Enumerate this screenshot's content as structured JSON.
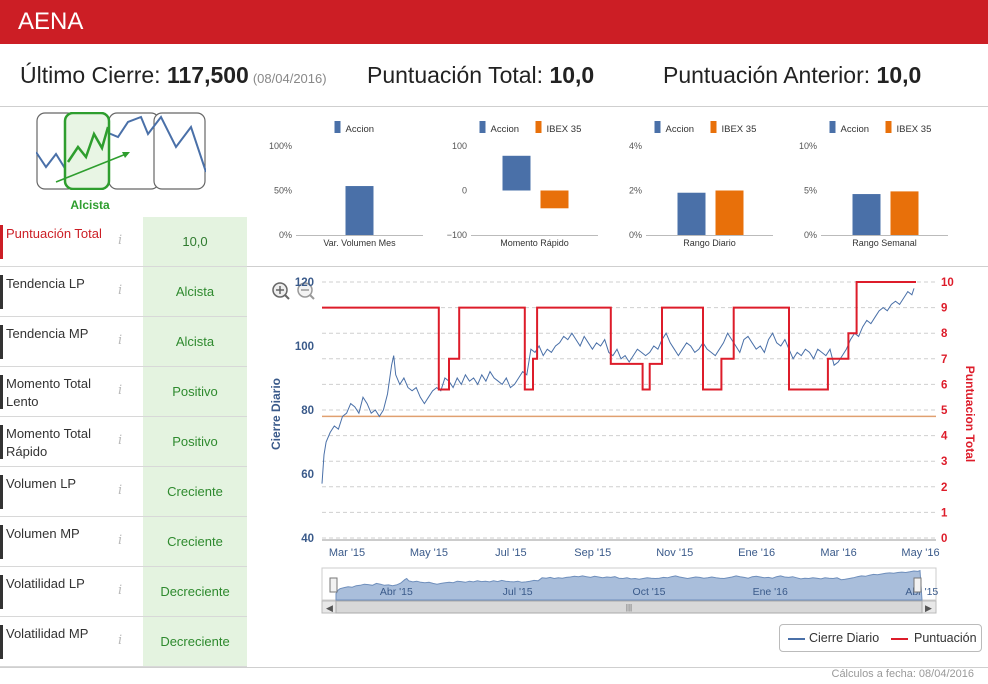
{
  "app": {
    "title": "AENA"
  },
  "summary": {
    "last_close_label": "Último Cierre:",
    "last_close_value": "117,500",
    "last_close_date": "(08/04/2016)",
    "total_label": "Puntuación Total:",
    "total_value": "10,0",
    "prev_label": "Puntuación Anterior:",
    "prev_value": "10,0"
  },
  "trend": {
    "label": "Alcista"
  },
  "indicators": [
    {
      "name": "Puntuación Total",
      "value": "10,0"
    },
    {
      "name": "Tendencia LP",
      "value": "Alcista"
    },
    {
      "name": "Tendencia MP",
      "value": "Alcista"
    },
    {
      "name": "Momento Total Lento",
      "value": "Positivo"
    },
    {
      "name": "Momento Total Rápido",
      "value": "Positivo"
    },
    {
      "name": "Volumen LP",
      "value": "Creciente"
    },
    {
      "name": "Volumen MP",
      "value": "Creciente"
    },
    {
      "name": "Volatilidad LP",
      "value": "Decreciente"
    },
    {
      "name": "Volatilidad MP",
      "value": "Decreciente"
    }
  ],
  "info_icon": "i",
  "colors": {
    "accion": "#4a70a8",
    "ibex": "#e8700a",
    "score": "#dd1c2a",
    "brand": "#cc1e25",
    "ref": "#e0a070"
  },
  "chart_data": [
    {
      "type": "bar",
      "title": "Var. Volumen Mes",
      "legend": [
        "Accion"
      ],
      "yticks": [
        "100%",
        "50%",
        "0%"
      ],
      "ylim": [
        0,
        100
      ],
      "series": [
        {
          "name": "Accion",
          "values": [
            55
          ]
        }
      ]
    },
    {
      "type": "bar",
      "title": "Momento Rápido",
      "legend": [
        "Accion",
        "IBEX 35"
      ],
      "yticks": [
        "100",
        "0",
        "−100"
      ],
      "ylim": [
        -100,
        100
      ],
      "series": [
        {
          "name": "Accion",
          "values": [
            78
          ]
        },
        {
          "name": "IBEX 35",
          "values": [
            -40
          ]
        }
      ]
    },
    {
      "type": "bar",
      "title": "Rango Diario",
      "legend": [
        "Accion",
        "IBEX 35"
      ],
      "yticks": [
        "4%",
        "2%",
        "0%"
      ],
      "ylim": [
        0,
        4
      ],
      "series": [
        {
          "name": "Accion",
          "values": [
            1.9
          ]
        },
        {
          "name": "IBEX 35",
          "values": [
            2.0
          ]
        }
      ]
    },
    {
      "type": "bar",
      "title": "Rango Semanal",
      "legend": [
        "Accion",
        "IBEX 35"
      ],
      "yticks": [
        "10%",
        "5%",
        "0%"
      ],
      "ylim": [
        0,
        10
      ],
      "series": [
        {
          "name": "Accion",
          "values": [
            4.6
          ]
        },
        {
          "name": "IBEX 35",
          "values": [
            4.9
          ]
        }
      ]
    },
    {
      "type": "line",
      "ylabel": "Cierre Diario",
      "y2label": "Puntuacion Total",
      "ylim": [
        40,
        120
      ],
      "y2lim": [
        0,
        10
      ],
      "yticks": [
        "120",
        "100",
        "80",
        "60",
        "40"
      ],
      "y2ticks": [
        "10",
        "9",
        "8",
        "7",
        "6",
        "5",
        "4",
        "3",
        "2",
        "1",
        "0"
      ],
      "xticks": [
        "Mar '15",
        "May '15",
        "Jul '15",
        "Sep '15",
        "Nov '15",
        "Ene '16",
        "Mar '16",
        "May '16"
      ],
      "navigator_ticks": [
        "Abr '15",
        "Jul '15",
        "Oct '15",
        "Ene '16",
        "Abr '15"
      ],
      "reference_line": 78,
      "x": [
        0,
        1,
        2,
        4,
        6,
        8,
        10,
        12,
        14,
        16,
        18,
        20,
        22,
        24,
        26,
        28,
        30,
        32,
        34,
        36,
        38,
        40,
        42,
        44,
        46,
        48,
        50,
        52,
        54,
        56,
        58,
        60,
        62,
        64,
        66,
        68,
        70,
        72,
        74,
        76,
        78,
        80,
        82,
        84,
        86,
        88,
        90,
        92,
        94,
        96,
        98,
        100,
        102,
        104,
        106,
        108,
        110,
        112,
        114,
        116,
        118,
        120,
        122,
        124,
        126,
        128,
        130,
        132,
        134,
        136,
        138,
        140,
        142,
        144,
        146,
        148,
        150,
        152,
        154,
        156,
        158,
        160,
        162,
        164,
        166,
        168,
        170,
        172,
        174,
        176,
        178,
        180,
        182,
        184,
        186,
        188,
        190,
        192,
        194,
        196,
        198,
        200,
        202,
        204,
        206,
        208,
        210,
        212,
        214,
        216,
        218,
        220,
        222,
        224,
        226,
        228,
        230,
        232,
        234,
        236,
        238,
        240,
        242,
        244,
        246,
        248,
        250,
        252,
        254,
        256,
        258,
        260,
        262,
        264,
        266,
        268,
        270,
        272,
        274,
        276,
        278,
        280,
        282,
        284,
        286,
        288,
        290,
        292,
        294,
        296,
        298,
        300,
        302,
        304,
        306,
        308,
        310,
        312,
        314,
        316,
        318,
        320,
        322,
        324,
        326,
        328,
        330,
        332,
        334,
        336,
        338,
        340,
        342,
        344,
        346,
        348,
        350,
        352,
        354,
        356,
        358,
        360,
        362,
        364,
        366,
        368,
        370,
        372,
        374,
        376,
        378,
        380,
        382,
        384,
        386,
        388,
        390,
        392,
        394,
        396,
        398,
        400,
        402,
        404,
        406,
        408,
        410,
        412,
        414,
        416,
        418,
        420,
        422,
        424,
        426,
        428,
        430,
        432,
        434,
        436,
        438,
        440,
        442,
        444,
        446,
        448,
        450,
        452,
        454,
        456,
        458,
        460,
        462,
        464,
        466,
        468,
        470,
        472,
        474,
        476,
        478,
        480,
        482,
        484,
        486,
        488,
        490,
        492,
        494,
        496,
        498,
        500,
        502,
        504,
        506,
        508,
        510,
        512,
        514,
        516,
        518,
        520,
        522,
        524,
        526,
        528,
        530,
        532,
        534,
        536,
        538,
        540,
        542,
        544,
        546,
        548,
        550,
        552,
        554,
        556,
        558,
        560,
        562,
        564,
        566,
        568,
        570,
        572,
        574,
        576,
        578,
        580
      ],
      "series": [
        {
          "name": "Cierre Diario",
          "points": [
            [
              0,
              57
            ],
            [
              2,
              66
            ],
            [
              4,
              70
            ],
            [
              8,
              73
            ],
            [
              12,
              75
            ],
            [
              16,
              74
            ],
            [
              20,
              78
            ],
            [
              24,
              79
            ],
            [
              28,
              82
            ],
            [
              32,
              81
            ],
            [
              36,
              79
            ],
            [
              40,
              84
            ],
            [
              44,
              82
            ],
            [
              48,
              79
            ],
            [
              52,
              80
            ],
            [
              56,
              78
            ],
            [
              60,
              80
            ],
            [
              64,
              85
            ],
            [
              68,
              94
            ],
            [
              70,
              97
            ],
            [
              72,
              91
            ],
            [
              76,
              88
            ],
            [
              80,
              90
            ],
            [
              84,
              87
            ],
            [
              88,
              86
            ],
            [
              92,
              87
            ],
            [
              96,
              84
            ],
            [
              100,
              82
            ],
            [
              104,
              84
            ],
            [
              108,
              86
            ],
            [
              112,
              87
            ],
            [
              116,
              86
            ],
            [
              120,
              90
            ],
            [
              124,
              89
            ],
            [
              128,
              87
            ],
            [
              132,
              90
            ],
            [
              136,
              88
            ],
            [
              140,
              91
            ],
            [
              144,
              89
            ],
            [
              148,
              90
            ],
            [
              152,
              88
            ],
            [
              156,
              91
            ],
            [
              160,
              89
            ],
            [
              164,
              92
            ],
            [
              168,
              90
            ],
            [
              172,
              89
            ],
            [
              176,
              88
            ],
            [
              180,
              90
            ],
            [
              184,
              87
            ],
            [
              188,
              88
            ],
            [
              192,
              90
            ],
            [
              196,
              92
            ],
            [
              200,
              91
            ],
            [
              204,
              99
            ],
            [
              208,
              98
            ],
            [
              212,
              100
            ],
            [
              216,
              97
            ],
            [
              220,
              99
            ],
            [
              224,
              98
            ],
            [
              228,
              100
            ],
            [
              232,
              101
            ],
            [
              236,
              103
            ],
            [
              240,
              102
            ],
            [
              244,
              104
            ],
            [
              248,
              102
            ],
            [
              252,
              100
            ],
            [
              256,
              103
            ],
            [
              260,
              101
            ],
            [
              264,
              99
            ],
            [
              268,
              101
            ],
            [
              272,
              100
            ],
            [
              276,
              102
            ],
            [
              280,
              98
            ],
            [
              284,
              97
            ],
            [
              288,
              99
            ],
            [
              292,
              96
            ],
            [
              296,
              97
            ],
            [
              300,
              95
            ],
            [
              304,
              97
            ],
            [
              308,
              99
            ],
            [
              312,
              98
            ],
            [
              316,
              97
            ],
            [
              320,
              98
            ],
            [
              324,
              100
            ],
            [
              328,
              99
            ],
            [
              332,
              102
            ],
            [
              336,
              104
            ],
            [
              340,
              101
            ],
            [
              344,
              99
            ],
            [
              348,
              97
            ],
            [
              352,
              99
            ],
            [
              356,
              101
            ],
            [
              360,
              100
            ],
            [
              364,
              98
            ],
            [
              368,
              99
            ],
            [
              372,
              101
            ],
            [
              376,
              99
            ],
            [
              380,
              98
            ],
            [
              384,
              97
            ],
            [
              388,
              99
            ],
            [
              392,
              101
            ],
            [
              396,
              104
            ],
            [
              400,
              102
            ],
            [
              404,
              100
            ],
            [
              408,
              98
            ],
            [
              412,
              102
            ],
            [
              416,
              103
            ],
            [
              420,
              101
            ],
            [
              424,
              99
            ],
            [
              428,
              100
            ],
            [
              432,
              98
            ],
            [
              436,
              102
            ],
            [
              440,
              104
            ],
            [
              444,
              101
            ],
            [
              448,
              100
            ],
            [
              452,
              102
            ],
            [
              456,
              99
            ],
            [
              460,
              96
            ],
            [
              464,
              98
            ],
            [
              468,
              97
            ],
            [
              472,
              99
            ],
            [
              476,
              98
            ],
            [
              480,
              96
            ],
            [
              484,
              99
            ],
            [
              488,
              98
            ],
            [
              492,
              97
            ],
            [
              496,
              99
            ],
            [
              500,
              94
            ],
            [
              504,
              95
            ],
            [
              508,
              97
            ],
            [
              512,
              99
            ],
            [
              516,
              102
            ],
            [
              520,
              104
            ],
            [
              524,
              103
            ],
            [
              528,
              106
            ],
            [
              532,
              108
            ],
            [
              536,
              107
            ],
            [
              540,
              109
            ],
            [
              544,
              111
            ],
            [
              548,
              112
            ],
            [
              552,
              111
            ],
            [
              556,
              113
            ],
            [
              560,
              114
            ],
            [
              564,
              113
            ],
            [
              568,
              115
            ],
            [
              572,
              117
            ],
            [
              576,
              116
            ],
            [
              578,
              118
            ]
          ]
        },
        {
          "name": "Puntuación",
          "steps": [
            [
              0,
              9
            ],
            [
              114,
              9
            ],
            [
              114,
              5.8
            ],
            [
              124,
              5.8
            ],
            [
              124,
              7
            ],
            [
              134,
              7
            ],
            [
              134,
              9
            ],
            [
              198,
              9
            ],
            [
              198,
              5.8
            ],
            [
              206,
              5.8
            ],
            [
              206,
              7
            ],
            [
              210,
              7
            ],
            [
              210,
              9
            ],
            [
              282,
              9
            ],
            [
              282,
              6.8
            ],
            [
              313,
              6.8
            ],
            [
              313,
              5.8
            ],
            [
              320,
              5.8
            ],
            [
              320,
              6.8
            ],
            [
              332,
              6.8
            ],
            [
              332,
              9
            ],
            [
              372,
              9
            ],
            [
              372,
              5.8
            ],
            [
              390,
              5.8
            ],
            [
              390,
              7
            ],
            [
              402,
              7
            ],
            [
              402,
              9
            ],
            [
              456,
              9
            ],
            [
              456,
              5.8
            ],
            [
              494,
              5.8
            ],
            [
              494,
              7
            ],
            [
              514,
              7
            ],
            [
              514,
              8
            ],
            [
              522,
              8
            ],
            [
              522,
              10
            ],
            [
              580,
              10
            ]
          ]
        }
      ]
    }
  ],
  "legend": {
    "line1": "Cierre Diario",
    "line2": "Puntuación"
  },
  "footer": {
    "text": "Cálculos a fecha: 08/04/2016"
  }
}
